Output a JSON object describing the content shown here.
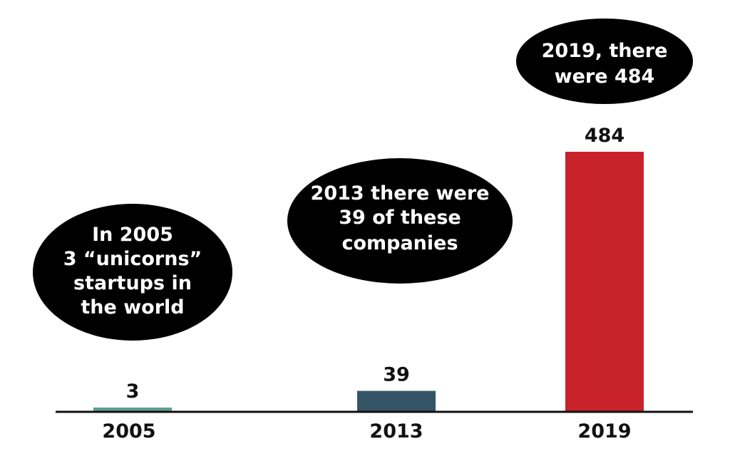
{
  "chart_data": {
    "type": "bar",
    "title": "",
    "xlabel": "",
    "ylabel": "",
    "categories": [
      "2005",
      "2013",
      "2019"
    ],
    "values": [
      3,
      39,
      484
    ],
    "data_labels": [
      "3",
      "39",
      "484"
    ],
    "bar_colors": [
      "#5f9e95",
      "#355566",
      "#c8222a"
    ],
    "ylim": [
      0,
      484
    ],
    "grid": false,
    "legend": "none",
    "annotations": [
      {
        "category": "2005",
        "lines": [
          "In 2005",
          "3 “unicorns”",
          "startups in",
          "the world"
        ]
      },
      {
        "category": "2013",
        "lines": [
          "2013 there were",
          "39 of these",
          "companies"
        ]
      },
      {
        "category": "2019",
        "lines": [
          "2019, there",
          "were 484"
        ]
      }
    ]
  }
}
